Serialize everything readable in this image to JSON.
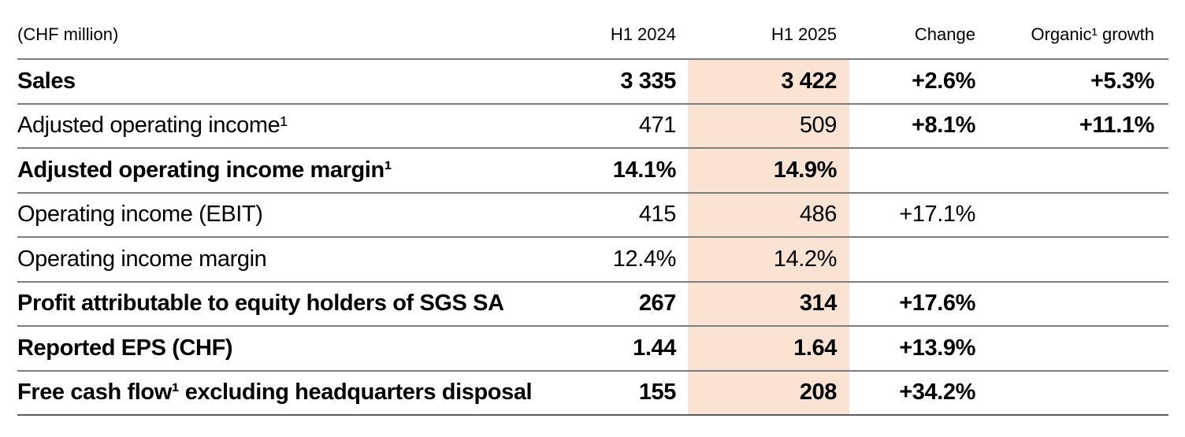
{
  "colors": {
    "highlight_bg": "#fae3d2",
    "rule": "#7d7d7d",
    "rule_strong": "#5c5c5c",
    "text": "#000000"
  },
  "table": {
    "unit_label": "(CHF million)",
    "columns": [
      "H1 2024",
      "H1 2025",
      "Change",
      "Organic¹ growth"
    ],
    "rows": [
      {
        "label": "Sales",
        "h1_2024": "3 335",
        "h1_2025": "3 422",
        "change": "+2.6%",
        "organic_growth": "+5.3%"
      },
      {
        "label": "Adjusted operating income¹",
        "h1_2024": "471",
        "h1_2025": "509",
        "change": "+8.1%",
        "organic_growth": "+11.1%"
      },
      {
        "label": "Adjusted operating income margin¹",
        "h1_2024": "14.1%",
        "h1_2025": "14.9%",
        "change": "",
        "organic_growth": ""
      },
      {
        "label": "Operating income (EBIT)",
        "h1_2024": "415",
        "h1_2025": "486",
        "change": "+17.1%",
        "organic_growth": ""
      },
      {
        "label": "Operating income margin",
        "h1_2024": "12.4%",
        "h1_2025": "14.2%",
        "change": "",
        "organic_growth": ""
      },
      {
        "label": "Profit attributable to equity holders of SGS SA",
        "h1_2024": "267",
        "h1_2025": "314",
        "change": "+17.6%",
        "organic_growth": ""
      },
      {
        "label": "Reported EPS (CHF)",
        "h1_2024": "1.44",
        "h1_2025": "1.64",
        "change": "+13.9%",
        "organic_growth": ""
      },
      {
        "label": "Free cash flow¹ excluding headquarters disposal",
        "h1_2024": "155",
        "h1_2025": "208",
        "change": "+34.2%",
        "organic_growth": ""
      }
    ]
  }
}
